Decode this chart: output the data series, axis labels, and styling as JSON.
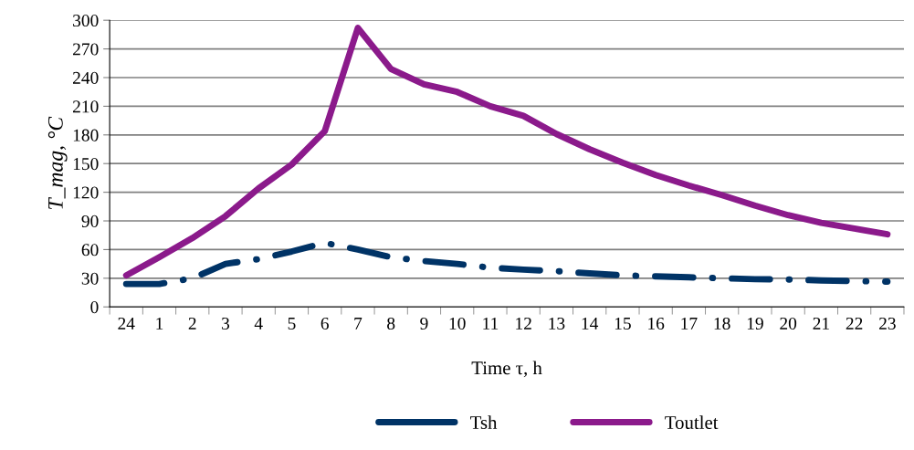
{
  "chart_data": {
    "type": "line",
    "xlabel": "Time τ, h",
    "ylabel": "T_mag, °C",
    "categories": [
      "24",
      "1",
      "2",
      "3",
      "4",
      "5",
      "6",
      "7",
      "8",
      "9",
      "10",
      "11",
      "12",
      "13",
      "14",
      "15",
      "16",
      "17",
      "18",
      "19",
      "20",
      "21",
      "22",
      "23"
    ],
    "series": [
      {
        "name": "Tsh",
        "color": "#003366",
        "line_style": "dashdot",
        "values": [
          24,
          24,
          30,
          45,
          50,
          58,
          67,
          60,
          52,
          48,
          45,
          41,
          39,
          37.5,
          35,
          33,
          32,
          31,
          30,
          29,
          28.7,
          27.7,
          27,
          26.5
        ]
      },
      {
        "name": "Toutlet",
        "color": "#8b1a8b",
        "line_style": "solid",
        "values": [
          33,
          52,
          72,
          95,
          124,
          149,
          184,
          292,
          249,
          233,
          225,
          210,
          200,
          181,
          165,
          151,
          138,
          127,
          117,
          106,
          96,
          88,
          82,
          76
        ]
      }
    ],
    "ylim": [
      0,
      300
    ],
    "yticks": [
      0,
      30,
      60,
      90,
      120,
      150,
      180,
      210,
      240,
      270,
      300
    ],
    "grid": "y",
    "legend": "bottom",
    "marker": "none"
  }
}
